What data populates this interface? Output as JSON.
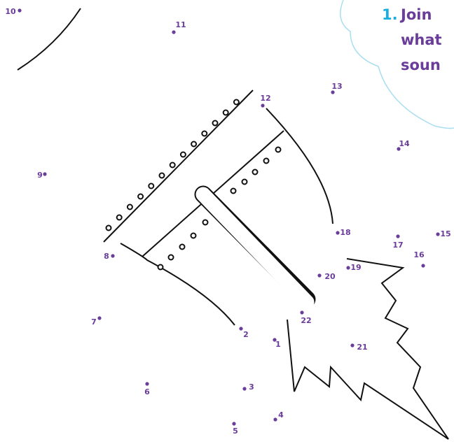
{
  "instruction": {
    "number": "1.",
    "lines": [
      "Join",
      "what",
      "soun"
    ]
  },
  "dots": [
    "1",
    "2",
    "3",
    "4",
    "5",
    "6",
    "7",
    "8",
    "9",
    "10",
    "11",
    "12",
    "13",
    "14",
    "15",
    "16",
    "17",
    "18",
    "19",
    "20",
    "21",
    "22"
  ]
}
